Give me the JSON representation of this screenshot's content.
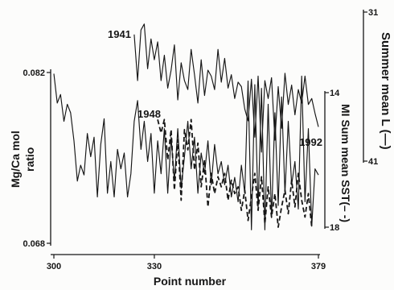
{
  "chart_data": {
    "type": "line",
    "xlabel": "Point number",
    "xlim": [
      300,
      379
    ],
    "x_ticks": [
      300,
      330,
      379
    ],
    "grid": false,
    "y_axes": [
      {
        "position": "left",
        "label": "Mg/Ca mol ratio",
        "ylim": [
          0.068,
          0.082
        ],
        "inverted": false,
        "ticks": [
          "0.082",
          "0.068"
        ]
      },
      {
        "position": "right",
        "label": "MI Sum mean SST(– -)",
        "ylim": [
          14,
          18
        ],
        "inverted": true,
        "ticks": [
          "14",
          "18"
        ]
      },
      {
        "position": "right",
        "label": "Summer mean L (—)",
        "ylim": [
          31,
          41
        ],
        "inverted": true,
        "ticks": [
          "31",
          "41"
        ]
      }
    ],
    "series": [
      {
        "axis": 0,
        "line_style": "solid",
        "x_start": 300,
        "values": [
          0.0819,
          0.0795,
          0.0802,
          0.078,
          0.0794,
          0.0787,
          0.0764,
          0.0731,
          0.0744,
          0.0736,
          0.077,
          0.0751,
          0.0767,
          0.0718,
          0.0761,
          0.0782,
          0.0721,
          0.0747,
          0.0718,
          0.0757,
          0.0741,
          0.0754,
          0.0718,
          0.0737,
          0.078,
          0.0797,
          0.0757,
          0.078,
          0.0747,
          0.077,
          0.0721,
          0.0764,
          0.0737,
          0.0774,
          0.0721,
          0.0767,
          0.0731,
          0.0774,
          0.0725,
          0.0751,
          0.078,
          0.0741,
          0.0767,
          0.0721,
          0.0754,
          0.0737,
          0.0764,
          0.0728,
          0.0761,
          0.0737,
          0.0747,
          0.0728,
          0.0744,
          0.0718,
          0.0734,
          0.0714,
          0.0744,
          0.0721,
          0.0813,
          0.0691,
          0.081,
          0.0708,
          0.0807,
          0.0691,
          0.0794,
          0.0701,
          0.0787,
          0.0711,
          0.08,
          0.0721,
          0.078,
          0.0728,
          0.0747,
          0.0708,
          0.0817,
          0.0714,
          0.0774,
          0.0694,
          0.0741,
          0.0736
        ]
      },
      {
        "axis": 2,
        "line_style": "solid",
        "x_start": 324,
        "values": [
          32.5,
          35.6,
          32.2,
          31.8,
          34.8,
          32.8,
          34.2,
          33.0,
          35.6,
          33.9,
          36.1,
          34.9,
          33.2,
          36.9,
          34.4,
          35.6,
          36.2,
          33.5,
          35.2,
          37.1,
          34.2,
          36.6,
          34.9,
          35.3,
          36.2,
          33.5,
          35.7,
          34.1,
          36.1,
          35.2,
          36.8,
          35.7,
          36.0,
          37.5,
          38.3,
          35.5,
          39.4,
          35.3,
          40.4,
          35.6,
          36.8,
          35.4,
          39.6,
          36.0,
          38.8,
          35.1,
          37.2,
          35.9,
          37.9,
          36.2,
          37.1,
          35.3,
          37.2,
          36.8,
          37.8,
          38.7
        ]
      },
      {
        "axis": 1,
        "line_style": "dashed",
        "x_start": 331,
        "values": [
          14.8,
          15.2,
          14.8,
          16.0,
          15.1,
          16.9,
          15.4,
          17.2,
          15.1,
          15.7,
          14.8,
          16.3,
          15.5,
          16.8,
          16.0,
          17.4,
          16.4,
          17.0,
          16.5,
          16.8,
          16.4,
          17.2,
          16.6,
          17.0,
          16.8,
          17.5,
          16.9,
          17.8,
          17.1,
          16.4,
          17.5,
          16.5,
          17.9,
          16.8,
          17.7,
          17.0,
          18.0,
          17.4,
          16.9,
          17.6,
          16.6,
          17.4,
          16.4,
          17.2,
          17.7,
          17.0,
          18.0
        ]
      }
    ],
    "annotations": [
      "1941",
      "1948",
      "1992"
    ]
  }
}
